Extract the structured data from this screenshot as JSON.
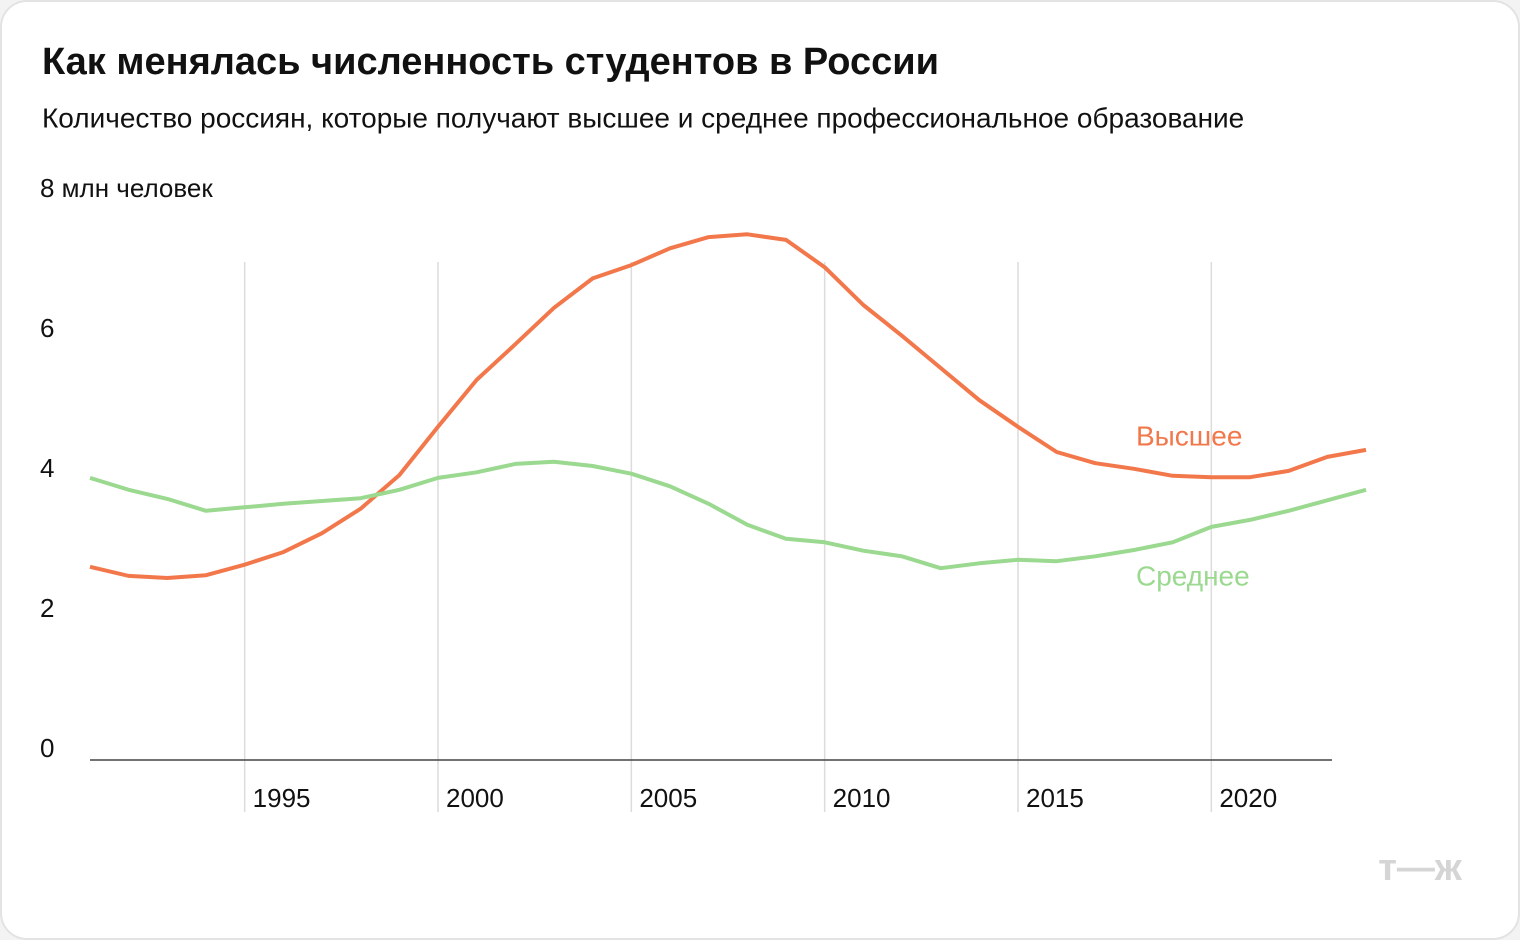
{
  "chart_data": {
    "type": "line",
    "title": "Как менялась численность студентов в России",
    "subtitle": "Количество россиян, которые получают высшее и среднее профессиональное образование",
    "x": [
      1991,
      1992,
      1993,
      1994,
      1995,
      1996,
      1997,
      1998,
      1999,
      2000,
      2001,
      2002,
      2003,
      2004,
      2005,
      2006,
      2007,
      2008,
      2009,
      2010,
      2011,
      2012,
      2013,
      2014,
      2015,
      2016,
      2017,
      2018,
      2019,
      2020,
      2021,
      2022,
      2023,
      2024
    ],
    "series": [
      {
        "name": "Высшее",
        "color": "#f2784b",
        "values": [
          2.76,
          2.63,
          2.6,
          2.64,
          2.79,
          2.97,
          3.24,
          3.59,
          4.07,
          4.76,
          5.43,
          5.94,
          6.46,
          6.88,
          7.07,
          7.31,
          7.47,
          7.51,
          7.43,
          7.04,
          6.5,
          6.06,
          5.6,
          5.14,
          4.76,
          4.4,
          4.24,
          4.16,
          4.06,
          4.04,
          4.04,
          4.13,
          4.33,
          4.43
        ]
      },
      {
        "name": "Среднее",
        "color": "#9ad98f",
        "values": [
          4.03,
          3.86,
          3.73,
          3.56,
          3.61,
          3.66,
          3.7,
          3.74,
          3.86,
          4.03,
          4.11,
          4.23,
          4.26,
          4.2,
          4.09,
          3.91,
          3.66,
          3.36,
          3.16,
          3.11,
          2.99,
          2.91,
          2.74,
          2.81,
          2.86,
          2.84,
          2.91,
          3.0,
          3.11,
          3.33,
          3.43,
          3.56,
          3.71,
          3.86
        ]
      }
    ],
    "xlim": [
      1991,
      2024
    ],
    "xticks": [
      1995,
      2000,
      2005,
      2010,
      2015,
      2020
    ],
    "ylim": [
      0,
      8
    ],
    "yticks": [
      0,
      2,
      4,
      6,
      {
        "value": 8,
        "label": "8 млн человек"
      }
    ],
    "grid": true,
    "logo": "т—ж"
  }
}
